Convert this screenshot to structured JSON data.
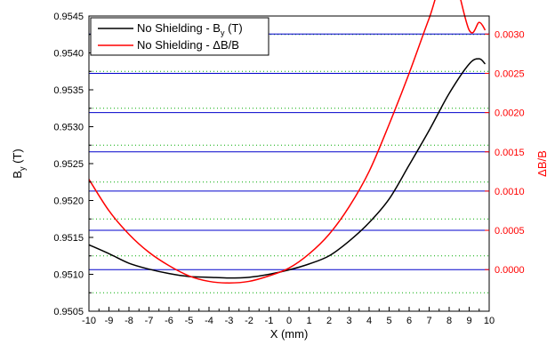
{
  "colors": {
    "left_axis": "#000000",
    "right_axis": "#ff0000",
    "grid_major": "#0000cc",
    "grid_minor": "#00aa00",
    "background": "#ffffff"
  },
  "chart_data": {
    "type": "line",
    "xlabel": "X (mm)",
    "ylabel_left": {
      "prefix": "B",
      "subscript": "y",
      "suffix": " (T)"
    },
    "ylabel_right": "ΔB/B",
    "xlim": [
      -10,
      10
    ],
    "ylim_left": [
      0.9505,
      0.9545
    ],
    "ylim_right": [
      -0.00053,
      0.00323
    ],
    "xticks": [
      -10,
      -9,
      -8,
      -7,
      -6,
      -5,
      -4,
      -3,
      -2,
      -1,
      0,
      1,
      2,
      3,
      4,
      5,
      6,
      7,
      8,
      9,
      10
    ],
    "yticks_left": [
      "0.9505",
      "0.9510",
      "0.9515",
      "0.9520",
      "0.9525",
      "0.9530",
      "0.9535",
      "0.9540",
      "0.9545"
    ],
    "yticks_right": [
      "0.0000",
      "0.0005",
      "0.0010",
      "0.0015",
      "0.0020",
      "0.0025",
      "0.0030"
    ],
    "grid": true,
    "legend_position": "top-left",
    "series": [
      {
        "name": {
          "prefix": "No Shielding - B",
          "subscript": "y",
          "suffix": " (T)"
        },
        "axis": "left",
        "color": "#000000",
        "x": [
          -10,
          -9,
          -8,
          -7,
          -6,
          -5,
          -4,
          -3,
          -2,
          -1,
          0,
          1,
          2,
          3,
          4,
          5,
          6,
          7,
          8,
          9,
          9.5,
          9.8
        ],
        "y": [
          0.9514,
          0.95128,
          0.95115,
          0.95107,
          0.95101,
          0.95097,
          0.95096,
          0.95095,
          0.95096,
          0.951,
          0.95106,
          0.95114,
          0.95125,
          0.95145,
          0.9517,
          0.95202,
          0.95248,
          0.95295,
          0.95345,
          0.95385,
          0.95392,
          0.95385
        ]
      },
      {
        "name": "No Shielding - ΔB/B",
        "axis": "right",
        "color": "#ff0000",
        "x": [
          -10,
          -9,
          -8,
          -7,
          -6,
          -5,
          -4,
          -3,
          -2,
          -1,
          0,
          1,
          2,
          3,
          4,
          5,
          6,
          7,
          8,
          9,
          9.5,
          9.8
        ],
        "y": [
          0.00115,
          0.00075,
          0.00045,
          0.00022,
          5e-05,
          -8e-05,
          -0.00015,
          -0.00017,
          -0.00015,
          -8e-05,
          2e-05,
          0.0002,
          0.00045,
          0.0008,
          0.00125,
          0.00185,
          0.0025,
          0.0032,
          0.00385,
          0.00305,
          0.00315,
          0.00305
        ]
      }
    ]
  }
}
